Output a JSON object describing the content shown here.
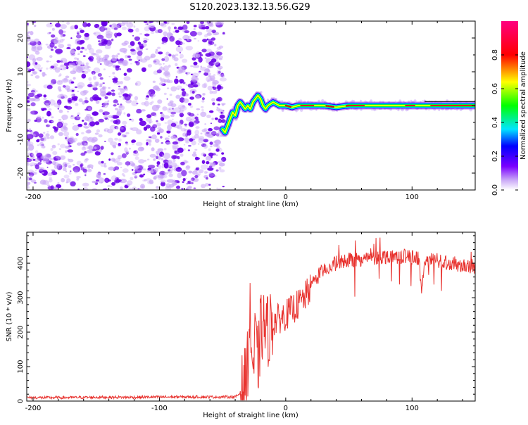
{
  "title": "S120.2023.132.13.56.G29",
  "colors": {
    "snr_line": "#e8322e",
    "ridge_core": "#e0001a",
    "noise_dark": "#6a00e8",
    "noise_light": "#c9a6f7",
    "axis": "#000000"
  },
  "chart_data": [
    {
      "type": "heatmap",
      "name": "spectrogram",
      "xlabel": "Height of straight line (km)",
      "ylabel": "Frequency (Hz)",
      "xlim": [
        -205,
        150
      ],
      "ylim": [
        -25,
        25
      ],
      "xticks": [
        -200,
        -100,
        0,
        100
      ],
      "yticks": [
        -20,
        -10,
        0,
        10,
        20
      ],
      "colorbar": {
        "label": "Normalized spectral amplitude",
        "ticks": [
          0.0,
          0.2,
          0.4,
          0.6,
          0.8
        ],
        "range": [
          0,
          1
        ],
        "colormap": "hsv-like (violet-blue-cyan-green-yellow-red-magenta)"
      },
      "noise_region_x": [
        -205,
        -49
      ],
      "ridge": {
        "x": [
          -50,
          -48,
          -46,
          -44,
          -42,
          -40,
          -38,
          -36,
          -34,
          -32,
          -30,
          -28,
          -26,
          -24,
          -22,
          -20,
          -18,
          -16,
          -14,
          -12,
          -10,
          -5,
          0,
          5,
          10,
          20,
          30,
          40,
          50,
          60,
          70,
          80,
          90,
          100,
          110,
          120,
          130,
          140,
          150
        ],
        "y": [
          -7,
          -8,
          -6,
          -4,
          -2,
          -3,
          0,
          1,
          0,
          -1,
          0,
          -1,
          1,
          2,
          3,
          2,
          0,
          -1,
          0,
          0.5,
          1,
          0,
          0,
          -0.5,
          0,
          0,
          0,
          -0.5,
          0,
          0,
          0,
          0,
          0,
          0,
          0,
          0,
          0,
          0,
          0
        ]
      },
      "grid": false
    },
    {
      "type": "line",
      "name": "snr",
      "xlabel": "Height of straight line (km)",
      "ylabel": "SNR (10 * v/v)",
      "xlim": [
        -205,
        150
      ],
      "ylim": [
        0,
        490
      ],
      "xticks": [
        -200,
        -100,
        0,
        100
      ],
      "yticks": [
        0,
        100,
        200,
        300,
        400
      ],
      "x": [
        -205,
        -180,
        -150,
        -120,
        -90,
        -60,
        -40,
        -35,
        -32,
        -30,
        -28,
        -26,
        -24,
        -22,
        -20,
        -18,
        -15,
        -10,
        -5,
        0,
        5,
        10,
        15,
        20,
        25,
        30,
        40,
        50,
        60,
        70,
        80,
        90,
        100,
        105,
        108,
        110,
        120,
        130,
        140,
        150
      ],
      "y": [
        10,
        10,
        11,
        11,
        12,
        12,
        12,
        25,
        50,
        120,
        250,
        80,
        180,
        100,
        200,
        220,
        200,
        230,
        240,
        250,
        265,
        280,
        300,
        330,
        360,
        380,
        400,
        410,
        412,
        415,
        420,
        420,
        418,
        415,
        320,
        410,
        408,
        400,
        395,
        390
      ],
      "grid": false
    }
  ]
}
